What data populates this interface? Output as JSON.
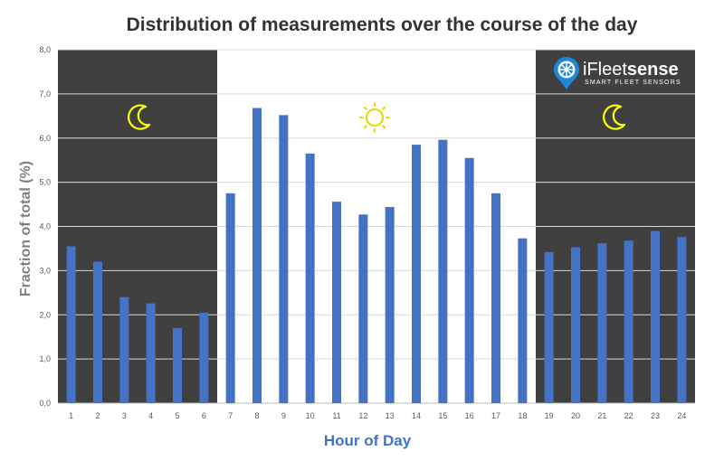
{
  "chart_data": {
    "type": "bar",
    "title": "Distribution of measurements over the course of the day",
    "xlabel": "Hour of Day",
    "ylabel": "Fraction of total (%)",
    "ylim": [
      0,
      8
    ],
    "y_ticks": [
      "0,0",
      "1,0",
      "2,0",
      "3,0",
      "4,0",
      "5,0",
      "6,0",
      "7,0",
      "8,0"
    ],
    "categories": [
      "1",
      "2",
      "3",
      "4",
      "5",
      "6",
      "7",
      "8",
      "9",
      "10",
      "11",
      "12",
      "13",
      "14",
      "15",
      "16",
      "17",
      "18",
      "19",
      "20",
      "21",
      "22",
      "23",
      "24"
    ],
    "values": [
      3.55,
      3.2,
      2.4,
      2.26,
      1.7,
      2.05,
      4.75,
      6.68,
      6.52,
      5.65,
      4.56,
      4.27,
      4.44,
      5.85,
      5.96,
      5.55,
      4.75,
      3.73,
      3.42,
      3.53,
      3.62,
      3.68,
      3.9,
      3.76
    ],
    "bar_color": "#4472c4",
    "night_bands": [
      [
        1,
        6
      ],
      [
        19,
        24
      ]
    ],
    "night_band_color": "#404040",
    "grid": true,
    "icons": {
      "night": "moon-icon",
      "day": "sun-icon",
      "icon_color": "#ffff00"
    }
  },
  "logo": {
    "brand_prefix": "iFleet",
    "brand_suffix": "sense",
    "tagline": "SMART FLEET SENSORS",
    "accent_color": "#1e88d6"
  }
}
